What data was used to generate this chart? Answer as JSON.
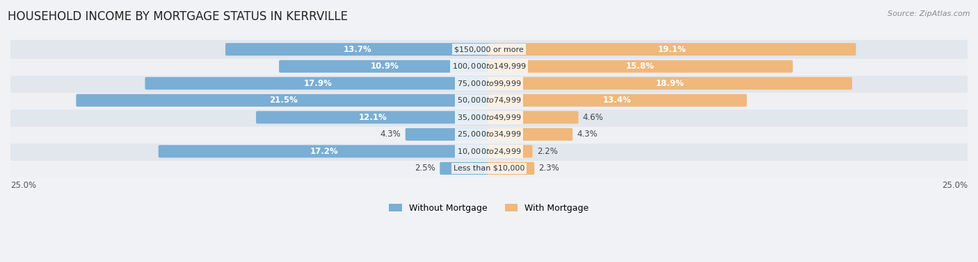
{
  "title": "HOUSEHOLD INCOME BY MORTGAGE STATUS IN KERRVILLE",
  "source": "Source: ZipAtlas.com",
  "categories": [
    "Less than $10,000",
    "$10,000 to $24,999",
    "$25,000 to $34,999",
    "$35,000 to $49,999",
    "$50,000 to $74,999",
    "$75,000 to $99,999",
    "$100,000 to $149,999",
    "$150,000 or more"
  ],
  "without_mortgage": [
    2.5,
    17.2,
    4.3,
    12.1,
    21.5,
    17.9,
    10.9,
    13.7
  ],
  "with_mortgage": [
    2.3,
    2.2,
    4.3,
    4.6,
    13.4,
    18.9,
    15.8,
    19.1
  ],
  "color_without": "#7aaed4",
  "color_with": "#f0b87a",
  "background_row_light": "#eef0f4",
  "background_row_dark": "#e2e6ed",
  "axis_limit": 25.0,
  "legend_labels": [
    "Without Mortgage",
    "With Mortgage"
  ],
  "title_fontsize": 12,
  "label_fontsize": 8.5,
  "category_fontsize": 8.0
}
